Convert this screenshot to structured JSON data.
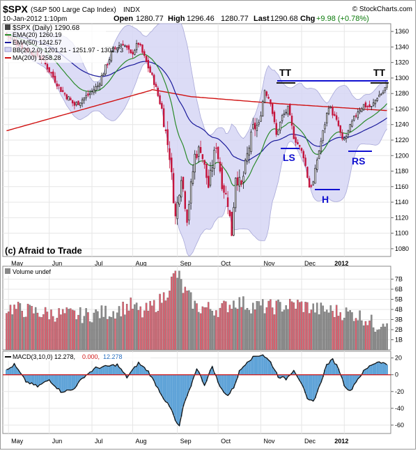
{
  "header": {
    "symbol": "$SPX",
    "name": "(S&P 500 Large Cap Index)",
    "exchange": "INDX",
    "brand": "© StockCharts.com",
    "date": "10-Jan-2012 1:10pm",
    "quote": {
      "open_label": "Open",
      "open": "1280.77",
      "high_label": "High",
      "high": "1296.46",
      "low_value": "1280.77",
      "last_label": "Last",
      "last": "1290.68",
      "chg_label": "Chg",
      "chg": "+9.98 (+0.78%)"
    }
  },
  "legend": {
    "price": "$SPX (Daily) 1290.68",
    "ema20": "EMA(20) 1260.19",
    "ema50": "EMA(50) 1242.57",
    "bb": "BB(20,2.0) 1201.21 - 1251.97 - 1302.73",
    "ma200": "MA(200) 1258.28",
    "volume": "Volume undef",
    "macd_name": "MACD(3,10,0) 12.278,",
    "macd_sig": "0.000,",
    "macd_hist": "12.278"
  },
  "annotations": {
    "copyright": "(c) Afraid to Trade",
    "tt_left": "TT",
    "tt_right": "TT",
    "ls": "LS",
    "h": "H",
    "rs": "RS"
  },
  "colors": {
    "up": "#1a1a1a",
    "down": "#c4143c",
    "ema20": "#2a8a2a",
    "ema50": "#1a1a9a",
    "ma200": "#d01010",
    "band": "#d6d6f4",
    "annotation": "#1010d0",
    "vol_up": "#8c8c8c",
    "vol_down": "#e06070",
    "macd": "#5fa3d8"
  },
  "chart_data": [
    {
      "type": "candlestick",
      "months": [
        "May",
        "Jun",
        "Jul",
        "Aug",
        "Sep",
        "Oct",
        "Nov",
        "Dec",
        "2012"
      ],
      "ylim": [
        1070,
        1370
      ],
      "yticks": [
        1080,
        1100,
        1120,
        1140,
        1160,
        1180,
        1200,
        1220,
        1240,
        1260,
        1280,
        1300,
        1320,
        1340,
        1360
      ],
      "close_keypoints": [
        [
          0,
          1355
        ],
        [
          10,
          1337
        ],
        [
          18,
          1326
        ],
        [
          28,
          1285
        ],
        [
          35,
          1265
        ],
        [
          42,
          1278
        ],
        [
          47,
          1290
        ],
        [
          55,
          1337
        ],
        [
          60,
          1345
        ],
        [
          64,
          1330
        ],
        [
          68,
          1345
        ],
        [
          72,
          1320
        ],
        [
          76,
          1295
        ],
        [
          80,
          1260
        ],
        [
          84,
          1200
        ],
        [
          87,
          1120
        ],
        [
          90,
          1175
        ],
        [
          93,
          1120
        ],
        [
          97,
          1200
        ],
        [
          100,
          1210
        ],
        [
          104,
          1160
        ],
        [
          108,
          1215
        ],
        [
          111,
          1165
        ],
        [
          114,
          1140
        ],
        [
          116,
          1100
        ],
        [
          118,
          1175
        ],
        [
          121,
          1160
        ],
        [
          124,
          1200
        ],
        [
          127,
          1235
        ],
        [
          130,
          1240
        ],
        [
          133,
          1285
        ],
        [
          136,
          1270
        ],
        [
          139,
          1226
        ],
        [
          142,
          1250
        ],
        [
          145,
          1260
        ],
        [
          148,
          1225
        ],
        [
          150,
          1215
        ],
        [
          153,
          1200
        ],
        [
          156,
          1160
        ],
        [
          158,
          1165
        ],
        [
          160,
          1195
        ],
        [
          163,
          1230
        ],
        [
          166,
          1265
        ],
        [
          168,
          1255
        ],
        [
          171,
          1238
        ],
        [
          173,
          1218
        ],
        [
          175,
          1225
        ],
        [
          178,
          1242
        ],
        [
          181,
          1258
        ],
        [
          184,
          1265
        ],
        [
          188,
          1262
        ],
        [
          191,
          1276
        ],
        [
          194,
          1282
        ],
        [
          196,
          1291
        ]
      ],
      "series": [
        "EMA(20)",
        "EMA(50)",
        "BB(20,2.0)",
        "MA(200)"
      ]
    },
    {
      "type": "bar",
      "name": "Volume",
      "ylim": [
        0,
        8
      ],
      "yticks": [
        "1B",
        "2B",
        "3B",
        "4B",
        "5B",
        "6B",
        "7B"
      ],
      "keypoints": [
        [
          0,
          4.2
        ],
        [
          20,
          3.6
        ],
        [
          40,
          3.4
        ],
        [
          55,
          3.8
        ],
        [
          64,
          4.4
        ],
        [
          70,
          3.6
        ],
        [
          78,
          4.6
        ],
        [
          82,
          5.5
        ],
        [
          85,
          6.8
        ],
        [
          87,
          7.5
        ],
        [
          89,
          7.2
        ],
        [
          91,
          6.0
        ],
        [
          94,
          5.2
        ],
        [
          98,
          4.2
        ],
        [
          110,
          4.0
        ],
        [
          118,
          4.8
        ],
        [
          125,
          4.4
        ],
        [
          135,
          4.2
        ],
        [
          150,
          4.5
        ],
        [
          160,
          4.0
        ],
        [
          170,
          3.8
        ],
        [
          180,
          3.5
        ],
        [
          186,
          3.0
        ],
        [
          190,
          2.4
        ],
        [
          196,
          3.1
        ]
      ]
    },
    {
      "type": "area",
      "name": "MACD",
      "ylim": [
        -70,
        28
      ],
      "yticks": [
        -60,
        -40,
        -20,
        0,
        20
      ],
      "keypoints": [
        [
          0,
          5
        ],
        [
          4,
          12
        ],
        [
          10,
          -8
        ],
        [
          16,
          -14
        ],
        [
          22,
          -6
        ],
        [
          28,
          -20
        ],
        [
          34,
          -18
        ],
        [
          40,
          -2
        ],
        [
          46,
          8
        ],
        [
          52,
          10
        ],
        [
          57,
          12
        ],
        [
          62,
          -3
        ],
        [
          68,
          14
        ],
        [
          73,
          4
        ],
        [
          77,
          -12
        ],
        [
          81,
          -28
        ],
        [
          85,
          -42
        ],
        [
          87,
          -55
        ],
        [
          89,
          -62
        ],
        [
          91,
          -38
        ],
        [
          94,
          -20
        ],
        [
          98,
          8
        ],
        [
          102,
          -12
        ],
        [
          106,
          10
        ],
        [
          110,
          -15
        ],
        [
          114,
          -25
        ],
        [
          117,
          -15
        ],
        [
          120,
          4
        ],
        [
          124,
          16
        ],
        [
          128,
          22
        ],
        [
          132,
          24
        ],
        [
          136,
          15
        ],
        [
          140,
          -2
        ],
        [
          144,
          -5
        ],
        [
          148,
          6
        ],
        [
          152,
          -10
        ],
        [
          155,
          -30
        ],
        [
          158,
          -32
        ],
        [
          161,
          -15
        ],
        [
          165,
          12
        ],
        [
          168,
          18
        ],
        [
          171,
          8
        ],
        [
          174,
          -12
        ],
        [
          177,
          -20
        ],
        [
          180,
          -8
        ],
        [
          184,
          4
        ],
        [
          188,
          12
        ],
        [
          192,
          16
        ],
        [
          196,
          12
        ]
      ]
    }
  ]
}
